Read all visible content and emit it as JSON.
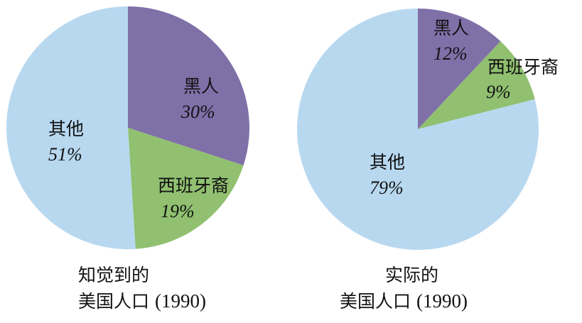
{
  "chart_data": [
    {
      "type": "pie",
      "caption_line1": "知觉到的",
      "caption_line2": "美国人口",
      "caption_year": "(1990)",
      "start_angle_deg": 0,
      "direction": "clockwise",
      "slices": [
        {
          "label": "黑人",
          "value": 30,
          "value_label": "30%",
          "color": "#8070a8"
        },
        {
          "label": "西班牙裔",
          "value": 19,
          "value_label": "19%",
          "color": "#90c070"
        },
        {
          "label": "其他",
          "value": 51,
          "value_label": "51%",
          "color": "#b8d8f0"
        }
      ]
    },
    {
      "type": "pie",
      "caption_line1": "实际的",
      "caption_line2": "美国人口",
      "caption_year": "(1990)",
      "start_angle_deg": 0,
      "direction": "clockwise",
      "slices": [
        {
          "label": "黑人",
          "value": 12,
          "value_label": "12%",
          "color": "#8070a8"
        },
        {
          "label": "西班牙裔",
          "value": 9,
          "value_label": "9%",
          "color": "#90c070"
        },
        {
          "label": "其他",
          "value": 79,
          "value_label": "79%",
          "color": "#b8d8f0"
        }
      ]
    }
  ]
}
